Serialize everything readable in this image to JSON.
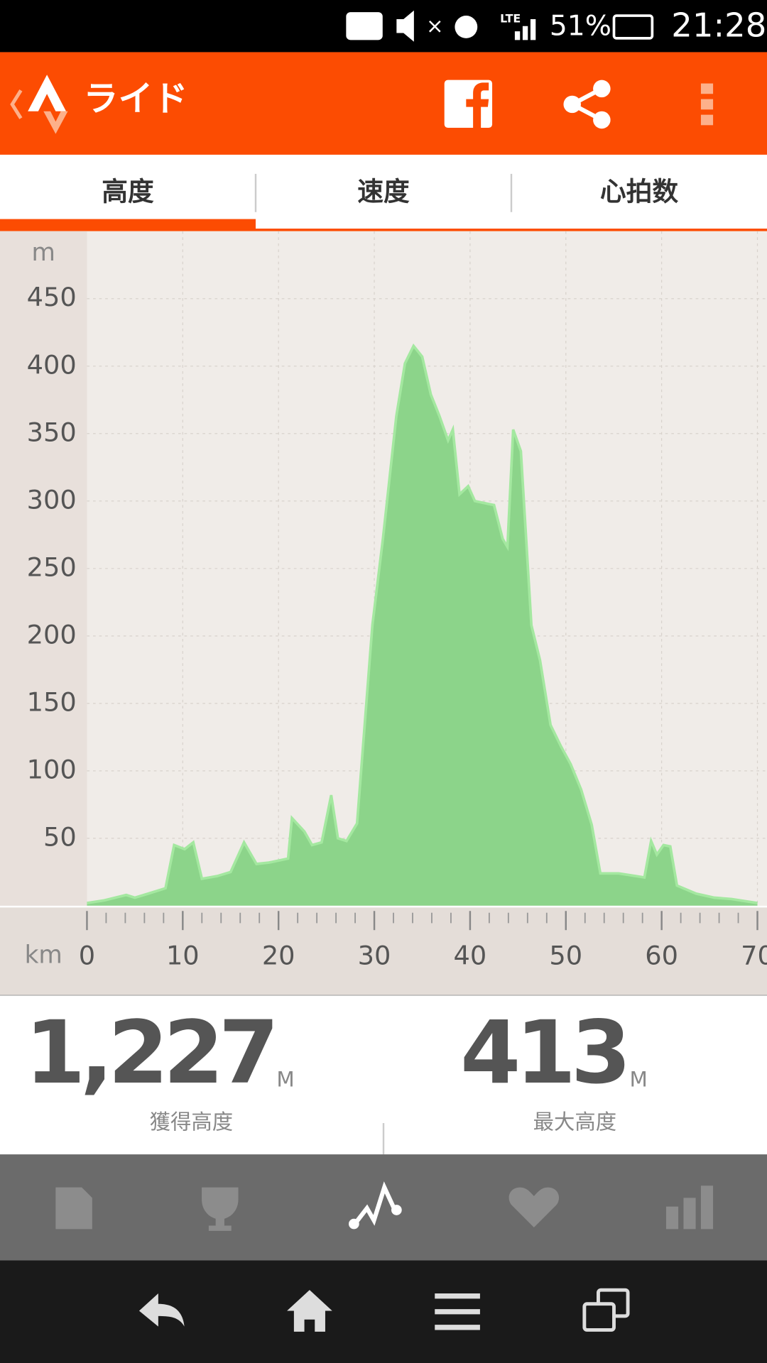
{
  "status_bar": {
    "network": "LTE",
    "battery": "51%",
    "time": "21:28"
  },
  "app_bar": {
    "title": "ライド"
  },
  "tabs": [
    "高度",
    "速度",
    "心拍数"
  ],
  "chart_data": {
    "type": "area",
    "y_unit": "m",
    "x_unit": "km",
    "color": "#8cd48a",
    "line_color": "#a4e8a0",
    "x": [
      0,
      1.8,
      4.1,
      5,
      6.4,
      8.2,
      9.1,
      10.2,
      11.1,
      12,
      13.6,
      15,
      16.4,
      17.7,
      19,
      21,
      21.4,
      22.7,
      23.5,
      24.5,
      25.5,
      26.2,
      27.1,
      28.2,
      29.8,
      30.9,
      32.3,
      33.2,
      34.1,
      35,
      35.9,
      36.8,
      37.7,
      38.2,
      38.9,
      39.8,
      40.5,
      41.8,
      42.5,
      43.4,
      43.9,
      44.5,
      45.3,
      46.4,
      47.3,
      48.4,
      49.5,
      50.5,
      51.6,
      52.7,
      53.6,
      55.5,
      57.3,
      58.2,
      58.9,
      59.5,
      60.2,
      60.9,
      61.6,
      63.6,
      65.5,
      67.3,
      70
    ],
    "values": [
      2,
      4,
      8,
      6,
      9,
      13,
      45,
      42,
      47,
      20,
      22,
      25,
      47,
      31,
      32,
      35,
      65,
      55,
      45,
      47,
      82,
      50,
      48,
      61,
      208,
      272,
      363,
      402,
      415,
      407,
      379,
      363,
      345,
      353,
      305,
      311,
      300,
      298,
      297,
      272,
      266,
      353,
      337,
      208,
      182,
      134,
      118,
      105,
      86,
      60,
      24,
      24,
      22,
      21,
      48,
      38,
      45,
      44,
      15,
      9,
      6,
      5,
      2
    ],
    "xlim": [
      0,
      71
    ],
    "ylim": [
      0,
      500
    ],
    "xticks": [
      0,
      10,
      20,
      30,
      40,
      50,
      60,
      70
    ],
    "yticks": [
      50,
      100,
      150,
      200,
      250,
      300,
      350,
      400,
      450
    ],
    "grid": true
  },
  "stats": [
    {
      "value": "1,227",
      "unit": "M",
      "label": "獲得高度"
    },
    {
      "value": "413",
      "unit": "M",
      "label": "最大高度"
    }
  ]
}
